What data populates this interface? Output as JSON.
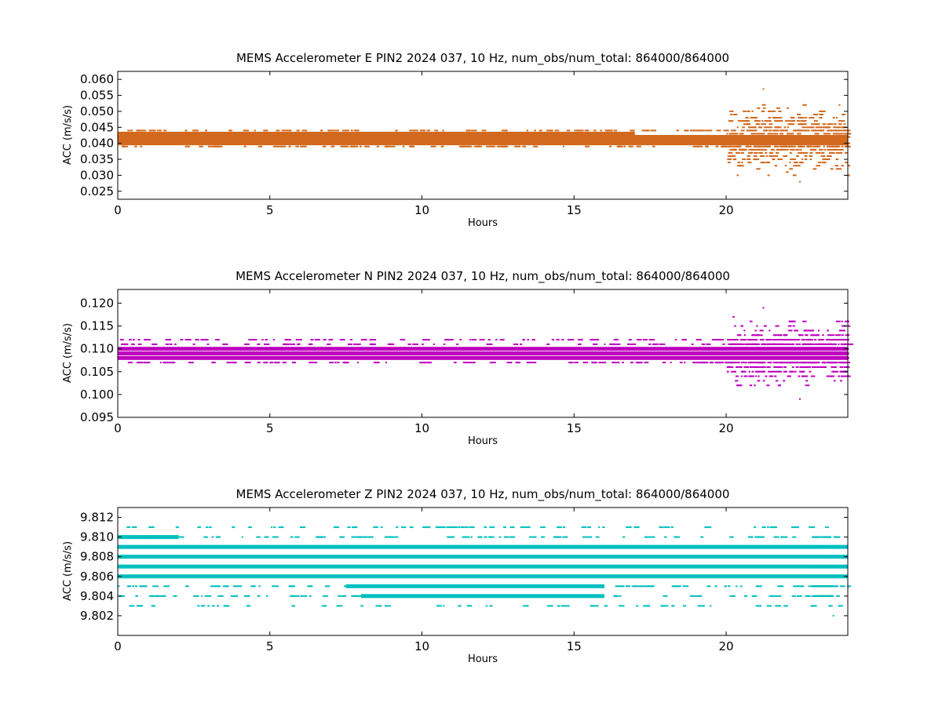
{
  "chart_data": [
    {
      "type": "scatter",
      "title": "MEMS Accelerometer E PIN2 2024 037, 10 Hz, num_obs/num_total: 864000/864000",
      "xlabel": "Hours",
      "ylabel": "ACC (m/s/s)",
      "xlim": [
        0,
        24
      ],
      "ylim": [
        0.0225,
        0.0625
      ],
      "xticks": [
        "0",
        "5",
        "10",
        "15",
        "20"
      ],
      "yticks": [
        "0.025",
        "0.030",
        "0.035",
        "0.040",
        "0.045",
        "0.050",
        "0.055",
        "0.060"
      ],
      "color": "#d2691e",
      "series": [
        {
          "band_levels": [
            0.04,
            0.041,
            0.042,
            0.043
          ],
          "band_ranges": [
            [
              0,
              24
            ],
            [
              0,
              24
            ],
            [
              0,
              24
            ],
            [
              0,
              17
            ]
          ],
          "sparse_levels": [
            0.039,
            0.044
          ],
          "burst_window": [
            20.0,
            24.0
          ],
          "burst_min": 0.028,
          "burst_max": 0.057
        }
      ]
    },
    {
      "type": "scatter",
      "title": "MEMS Accelerometer N PIN2 2024 037, 10 Hz, num_obs/num_total: 864000/864000",
      "xlabel": "Hours",
      "ylabel": "ACC (m/s/s)",
      "xlim": [
        0,
        24
      ],
      "ylim": [
        0.095,
        0.123
      ],
      "xticks": [
        "0",
        "5",
        "10",
        "15",
        "20"
      ],
      "yticks": [
        "0.095",
        "0.100",
        "0.105",
        "0.110",
        "0.115",
        "0.120"
      ],
      "color": "#bf00bf",
      "series": [
        {
          "band_levels": [
            0.108,
            0.109,
            0.11
          ],
          "band_ranges": [
            [
              0,
              24
            ],
            [
              0,
              24
            ],
            [
              0,
              24
            ]
          ],
          "sparse_levels": [
            0.107,
            0.111,
            0.112
          ],
          "burst_window": [
            20.0,
            24.0
          ],
          "burst_min": 0.099,
          "burst_max": 0.119
        }
      ]
    },
    {
      "type": "scatter",
      "title": "MEMS Accelerometer Z PIN2 2024 037, 10 Hz, num_obs/num_total: 864000/864000",
      "xlabel": "Hours",
      "ylabel": "ACC (m/s/s)",
      "xlim": [
        0,
        24
      ],
      "ylim": [
        9.8,
        9.813
      ],
      "xticks": [
        "0",
        "5",
        "10",
        "15",
        "20"
      ],
      "yticks": [
        "9.802",
        "9.804",
        "9.806",
        "9.808",
        "9.810",
        "9.812"
      ],
      "color": "#00bfbf",
      "series": [
        {
          "band_levels": [
            9.806,
            9.807,
            9.808,
            9.809,
            9.81,
            9.805,
            9.804
          ],
          "band_ranges": [
            [
              0,
              24
            ],
            [
              0,
              24
            ],
            [
              0,
              24
            ],
            [
              0,
              24
            ],
            [
              0,
              2
            ],
            [
              7.5,
              16
            ],
            [
              8,
              16
            ]
          ],
          "sparse_levels": [
            9.81,
            9.805,
            9.804,
            9.803,
            9.811
          ],
          "burst_window": [
            22.8,
            23.4
          ],
          "burst_min": 9.802,
          "burst_max": 9.811
        }
      ]
    }
  ]
}
